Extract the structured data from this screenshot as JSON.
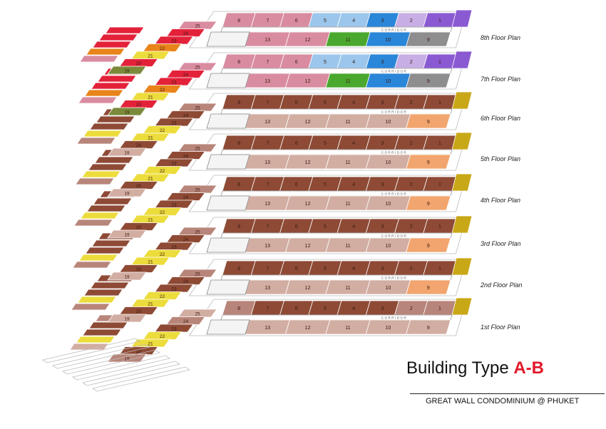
{
  "floors": [
    {
      "label": "8th Floor Plan",
      "scheme": "colorful"
    },
    {
      "label": "7th Floor Plan",
      "scheme": "colorful"
    },
    {
      "label": "6th Floor Plan",
      "scheme": "brown"
    },
    {
      "label": "5th Floor Plan",
      "scheme": "brown"
    },
    {
      "label": "4th Floor Plan",
      "scheme": "brown"
    },
    {
      "label": "3rd Floor Plan",
      "scheme": "brown"
    },
    {
      "label": "2nd Floor Plan",
      "scheme": "brown"
    },
    {
      "label": "1st Floor Plan",
      "scheme": "ground"
    }
  ],
  "corridor_label": "CORRIDOR",
  "unit_numbers": {
    "top_row": [
      "8",
      "7",
      "6",
      "5",
      "4",
      "3",
      "2",
      "1"
    ],
    "bottom_row": [
      "13",
      "12",
      "11",
      "10",
      "9"
    ],
    "wing_row": [
      "25",
      "24",
      "23",
      "22",
      "21",
      "20",
      "19"
    ]
  },
  "title": {
    "prefix": "Building Type ",
    "accent": "A-B"
  },
  "subtitle": "GREAT WALL CONDOMINIUM @ PHUKET",
  "colors": {
    "dark_brown": "#8e4a35",
    "mid_brown": "#b8857a",
    "light_brown": "#d2ada2",
    "orange": "#f2a56e",
    "olive_yellow": "#c9a818",
    "yellow": "#ecdc3c",
    "pink": "#d98ca0",
    "red": "#e3223a",
    "green": "#4aa82e",
    "blue": "#2a86d8",
    "light_blue": "#9cc6ec",
    "purple": "#8a5ad2",
    "lavender": "#c7aee4",
    "gray": "#8e8e8e",
    "dark_orange": "#e8841a",
    "olive": "#7a8a3a",
    "title_accent": "#e0192a"
  }
}
